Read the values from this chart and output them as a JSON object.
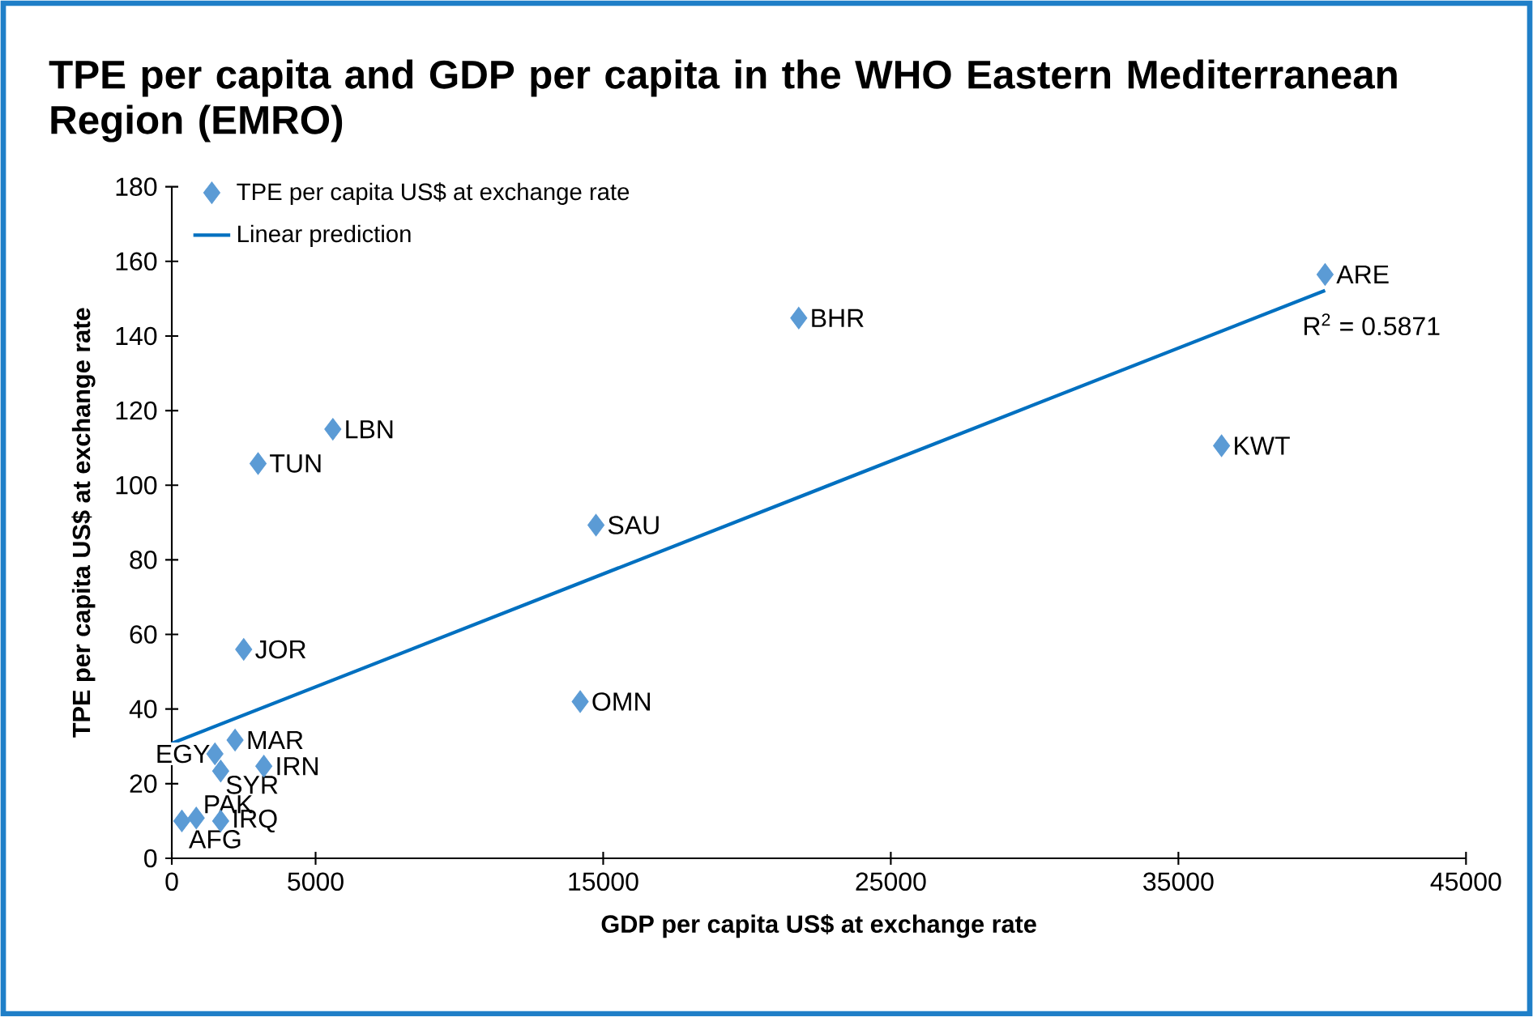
{
  "chart_data": {
    "type": "scatter",
    "title": "TPE per capita and GDP per capita in the WHO Eastern Mediterranean Region (EMRO)",
    "xlabel": "GDP per capita US$ at exchange rate",
    "ylabel": "TPE per capita US$ at exchange rate",
    "series": [
      {
        "name": "TPE per capita US$ at exchange rate",
        "color": "#5b9bd5",
        "marker": "diamond",
        "x": [
          40100,
          21800,
          36500,
          5600,
          3000,
          14750,
          2500,
          14200,
          2200,
          1500,
          1700,
          3200,
          1700,
          850,
          350
        ],
        "values": [
          156.5,
          144.8,
          110.6,
          115,
          105.8,
          89.3,
          56,
          42,
          31.7,
          28,
          23.4,
          24.7,
          10,
          10.8,
          10
        ]
      },
      {
        "name": "Linear prediction",
        "type": "line",
        "color": "#0070c0",
        "line_style": "solid",
        "x": [
          0,
          40100
        ],
        "values": [
          30.8,
          152.2
        ]
      }
    ],
    "annotations": [
      {
        "text": "ARE",
        "x": 40100,
        "y": 156.5
      },
      {
        "text": "BHR",
        "x": 21800,
        "y": 144.8
      },
      {
        "text": "KWT",
        "x": 36500,
        "y": 110.6
      },
      {
        "text": "LBN",
        "x": 5600,
        "y": 115
      },
      {
        "text": "TUN",
        "x": 3000,
        "y": 105.8
      },
      {
        "text": "SAU",
        "x": 14750,
        "y": 89.3
      },
      {
        "text": "JOR",
        "x": 2500,
        "y": 56
      },
      {
        "text": "OMN",
        "x": 14200,
        "y": 42
      },
      {
        "text": "MAR",
        "x": 2200,
        "y": 31.7
      },
      {
        "text": "EGY",
        "x": 1500,
        "y": 28
      },
      {
        "text": "SYR",
        "x": 1700,
        "y": 23.4
      },
      {
        "text": "IRN",
        "x": 3200,
        "y": 24.7
      },
      {
        "text": "IRQ",
        "x": 1700,
        "y": 10
      },
      {
        "text": "PAK",
        "x": 850,
        "y": 10.8
      },
      {
        "text": "AFG",
        "x": 350,
        "y": 10
      },
      "R$^{2}$ = 0.5871"
    ],
    "xlim": [
      0,
      45000
    ],
    "xticks": [
      0,
      5000,
      15000,
      25000,
      35000,
      45000
    ],
    "ylim": [
      0,
      180
    ],
    "yticks": [
      0,
      20,
      40,
      60,
      80,
      100,
      120,
      140,
      160,
      180
    ],
    "grid": false,
    "legend": "top left"
  }
}
